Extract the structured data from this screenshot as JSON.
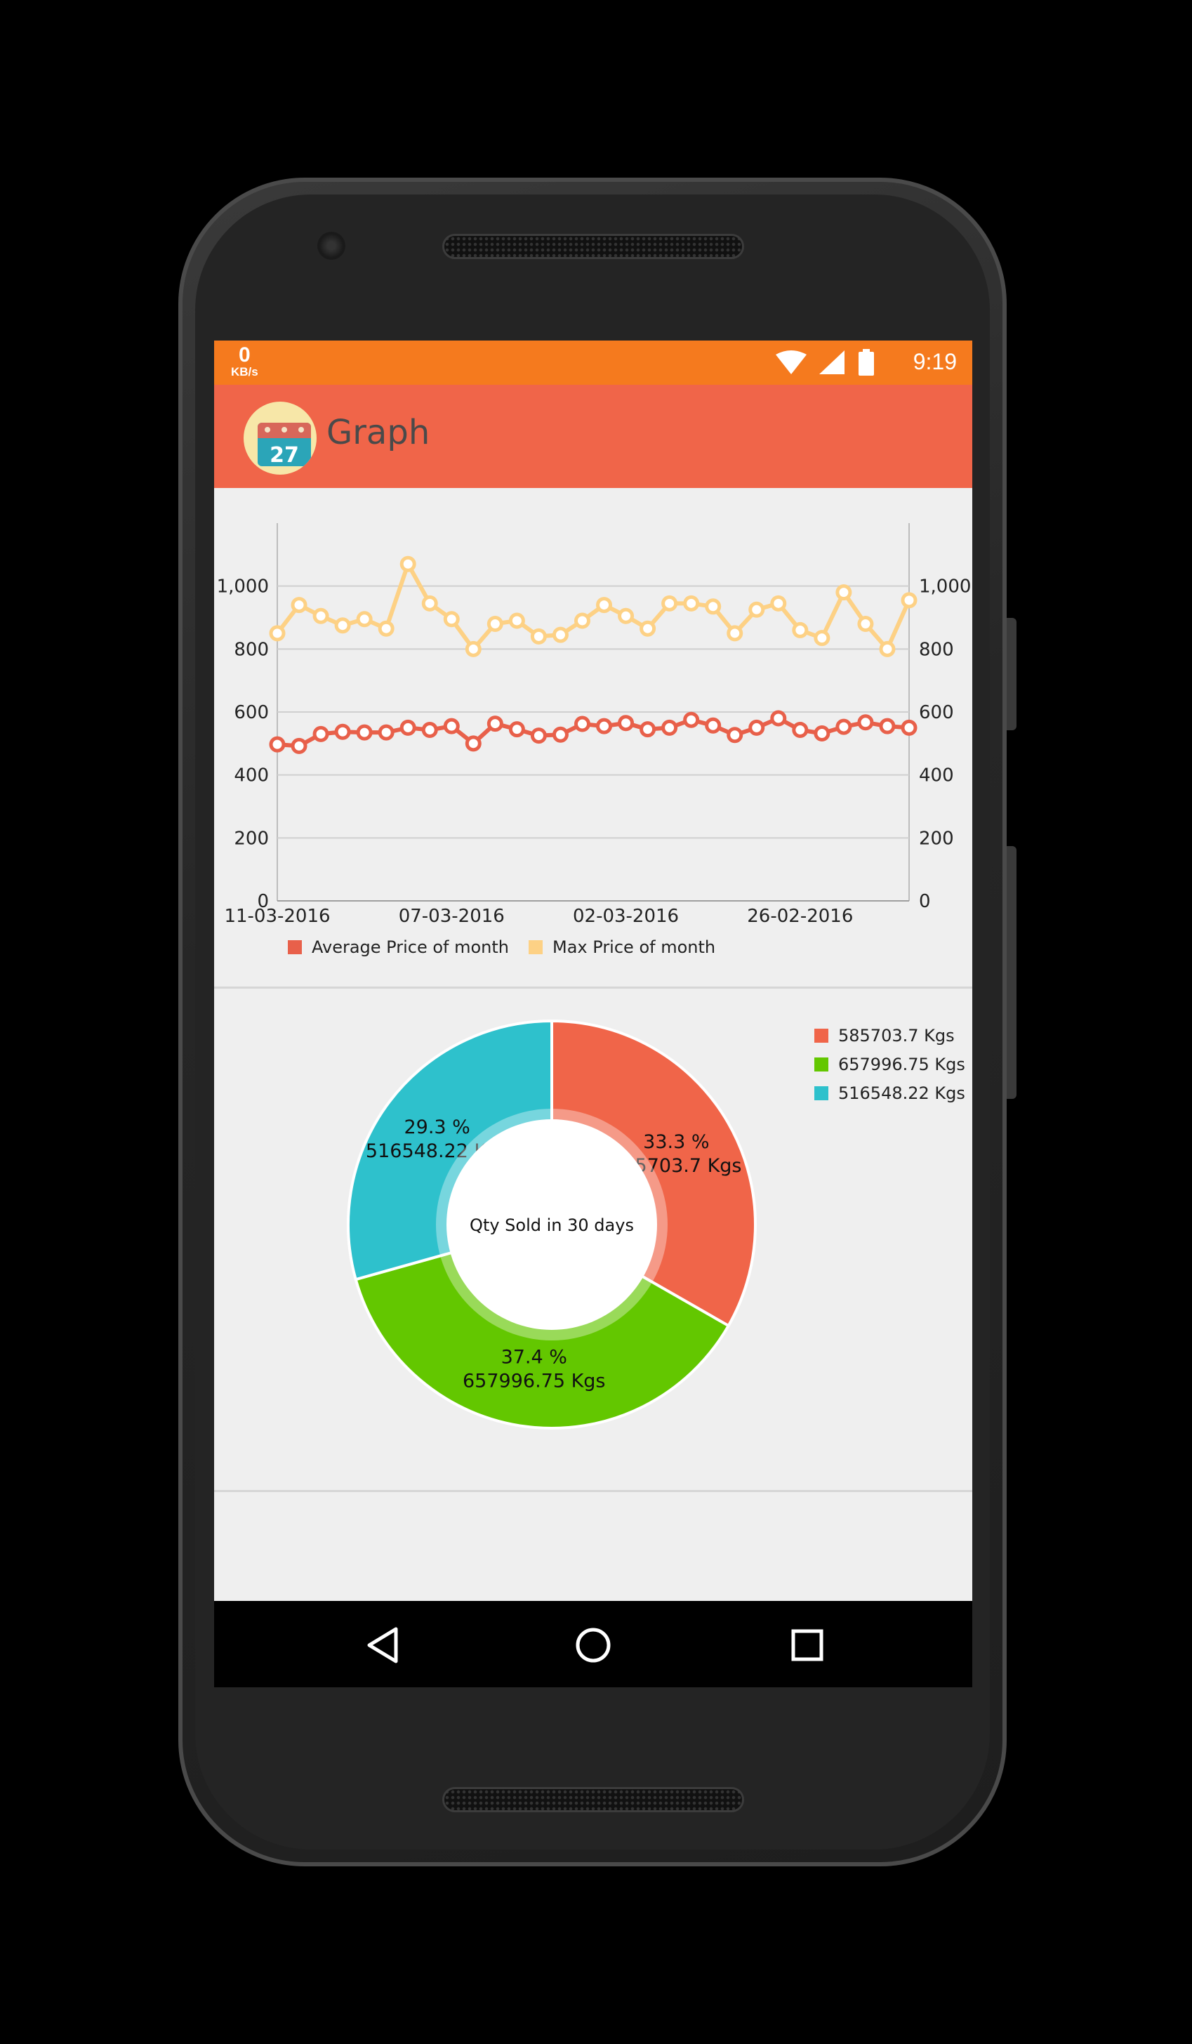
{
  "status_bar": {
    "net_speed_value": "0",
    "net_speed_unit": "KB/s",
    "time": "9:19",
    "icons": [
      "wifi-icon",
      "signal-icon",
      "battery-icon"
    ],
    "color": "#f57a1e"
  },
  "app_bar": {
    "title": "Graph",
    "logo_day": "27",
    "color": "#f06549"
  },
  "chart_data": [
    {
      "type": "line",
      "title": "",
      "xlabel": "",
      "ylabel": "",
      "ylim": [
        0,
        1200
      ],
      "y_ticks": [
        0,
        200,
        400,
        600,
        800,
        1000
      ],
      "y_tick_labels": [
        "0",
        "200",
        "400",
        "600",
        "800",
        "1,000"
      ],
      "x_tick_labels": [
        "11-03-2016",
        "07-03-2016",
        "02-03-2016",
        "26-02-2016"
      ],
      "x_tick_indices": [
        0,
        8,
        16,
        24
      ],
      "grid": true,
      "legend_position": "bottom-left",
      "series": [
        {
          "name": "Average Price of month",
          "color": "#e8604a",
          "values": [
            497,
            492,
            530,
            537,
            535,
            535,
            550,
            543,
            555,
            500,
            563,
            545,
            525,
            528,
            562,
            555,
            565,
            545,
            550,
            575,
            557,
            527,
            550,
            580,
            543,
            532,
            553,
            567,
            555,
            550
          ]
        },
        {
          "name": "Max Price of month",
          "color": "#fdd185",
          "values": [
            850,
            940,
            905,
            875,
            895,
            865,
            1070,
            945,
            895,
            800,
            880,
            890,
            840,
            845,
            890,
            940,
            905,
            865,
            945,
            945,
            935,
            850,
            925,
            945,
            860,
            835,
            980,
            880,
            800,
            955
          ]
        }
      ]
    },
    {
      "type": "pie",
      "title": "",
      "center_text": "Qty Sold in 30 days",
      "legend_position": "top-right",
      "slices": [
        {
          "label": "585703.7 Kgs",
          "value": 585703.7,
          "percent_label": "33.3 %",
          "color": "#f06549"
        },
        {
          "label": "657996.75 Kgs",
          "value": 657996.75,
          "percent_label": "37.4 %",
          "color": "#63c700"
        },
        {
          "label": "516548.22 Kgs",
          "value": 516548.22,
          "percent_label": "29.3 %",
          "color": "#2ec1cc"
        }
      ]
    }
  ],
  "nav_bar": {
    "buttons": [
      "back-icon",
      "home-icon",
      "recents-icon"
    ]
  }
}
